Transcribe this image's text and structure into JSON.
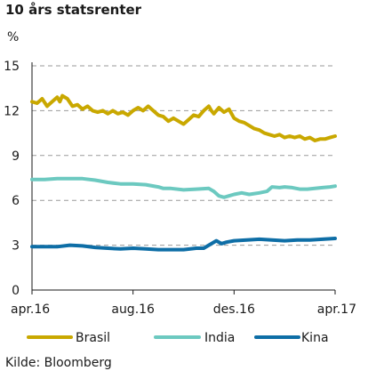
{
  "title": "10 års statsrenter",
  "unit_label": "%",
  "source": "Kilde: Bloomberg",
  "chart_data": {
    "type": "line",
    "title": "10 års statsrenter",
    "xlabel": "",
    "ylabel": "%",
    "ylim": [
      0,
      15
    ],
    "yticks": [
      0,
      3,
      6,
      9,
      12,
      15
    ],
    "xticks": [
      {
        "label": "apr.16",
        "x": 0
      },
      {
        "label": "aug.16",
        "x": 4
      },
      {
        "label": "des.16",
        "x": 8
      },
      {
        "label": "apr.17",
        "x": 12
      }
    ],
    "xlim": [
      0,
      12
    ],
    "grid": "horizontal dashed",
    "legend": "bottom",
    "series": [
      {
        "name": "Brasil",
        "color": "#c9a800",
        "points": [
          [
            0,
            12.6
          ],
          [
            0.2,
            12.5
          ],
          [
            0.4,
            12.8
          ],
          [
            0.6,
            12.3
          ],
          [
            0.8,
            12.6
          ],
          [
            1.0,
            12.9
          ],
          [
            1.1,
            12.6
          ],
          [
            1.2,
            13.0
          ],
          [
            1.4,
            12.8
          ],
          [
            1.6,
            12.3
          ],
          [
            1.8,
            12.4
          ],
          [
            2.0,
            12.1
          ],
          [
            2.2,
            12.3
          ],
          [
            2.4,
            12.0
          ],
          [
            2.6,
            11.9
          ],
          [
            2.8,
            12.0
          ],
          [
            3.0,
            11.8
          ],
          [
            3.2,
            12.0
          ],
          [
            3.4,
            11.8
          ],
          [
            3.6,
            11.9
          ],
          [
            3.8,
            11.7
          ],
          [
            4.0,
            12.0
          ],
          [
            4.2,
            12.2
          ],
          [
            4.4,
            12.0
          ],
          [
            4.6,
            12.3
          ],
          [
            4.8,
            12.0
          ],
          [
            5.0,
            11.7
          ],
          [
            5.2,
            11.6
          ],
          [
            5.4,
            11.3
          ],
          [
            5.6,
            11.5
          ],
          [
            5.8,
            11.3
          ],
          [
            6.0,
            11.1
          ],
          [
            6.2,
            11.4
          ],
          [
            6.4,
            11.7
          ],
          [
            6.6,
            11.6
          ],
          [
            6.8,
            12.0
          ],
          [
            7.0,
            12.3
          ],
          [
            7.1,
            12.0
          ],
          [
            7.2,
            11.8
          ],
          [
            7.4,
            12.2
          ],
          [
            7.6,
            11.9
          ],
          [
            7.8,
            12.1
          ],
          [
            8.0,
            11.5
          ],
          [
            8.2,
            11.3
          ],
          [
            8.4,
            11.2
          ],
          [
            8.6,
            11.0
          ],
          [
            8.8,
            10.8
          ],
          [
            9.0,
            10.7
          ],
          [
            9.2,
            10.5
          ],
          [
            9.4,
            10.4
          ],
          [
            9.6,
            10.3
          ],
          [
            9.8,
            10.4
          ],
          [
            10.0,
            10.2
          ],
          [
            10.2,
            10.3
          ],
          [
            10.4,
            10.2
          ],
          [
            10.6,
            10.3
          ],
          [
            10.8,
            10.1
          ],
          [
            11.0,
            10.2
          ],
          [
            11.2,
            10.0
          ],
          [
            11.4,
            10.1
          ],
          [
            11.6,
            10.1
          ],
          [
            11.8,
            10.2
          ],
          [
            12.0,
            10.3
          ]
        ]
      },
      {
        "name": "India",
        "color": "#6cc9c0",
        "points": [
          [
            0,
            7.4
          ],
          [
            0.5,
            7.4
          ],
          [
            1.0,
            7.45
          ],
          [
            1.5,
            7.45
          ],
          [
            2.0,
            7.45
          ],
          [
            2.5,
            7.35
          ],
          [
            3.0,
            7.2
          ],
          [
            3.5,
            7.1
          ],
          [
            4.0,
            7.1
          ],
          [
            4.5,
            7.05
          ],
          [
            5.0,
            6.9
          ],
          [
            5.2,
            6.8
          ],
          [
            5.5,
            6.8
          ],
          [
            6.0,
            6.7
          ],
          [
            6.5,
            6.75
          ],
          [
            7.0,
            6.8
          ],
          [
            7.2,
            6.6
          ],
          [
            7.4,
            6.3
          ],
          [
            7.6,
            6.2
          ],
          [
            7.8,
            6.3
          ],
          [
            8.0,
            6.4
          ],
          [
            8.3,
            6.5
          ],
          [
            8.6,
            6.4
          ],
          [
            9.0,
            6.5
          ],
          [
            9.3,
            6.6
          ],
          [
            9.5,
            6.9
          ],
          [
            9.8,
            6.85
          ],
          [
            10.0,
            6.9
          ],
          [
            10.3,
            6.85
          ],
          [
            10.6,
            6.75
          ],
          [
            10.9,
            6.75
          ],
          [
            11.2,
            6.8
          ],
          [
            11.5,
            6.85
          ],
          [
            11.8,
            6.9
          ],
          [
            12.0,
            6.95
          ]
        ]
      },
      {
        "name": "Kina",
        "color": "#0e6ea6",
        "points": [
          [
            0,
            2.9
          ],
          [
            0.5,
            2.9
          ],
          [
            1.0,
            2.9
          ],
          [
            1.5,
            3.0
          ],
          [
            2.0,
            2.95
          ],
          [
            2.5,
            2.85
          ],
          [
            3.0,
            2.8
          ],
          [
            3.5,
            2.75
          ],
          [
            4.0,
            2.8
          ],
          [
            4.5,
            2.75
          ],
          [
            5.0,
            2.7
          ],
          [
            5.5,
            2.7
          ],
          [
            6.0,
            2.7
          ],
          [
            6.5,
            2.8
          ],
          [
            6.8,
            2.8
          ],
          [
            7.0,
            3.0
          ],
          [
            7.3,
            3.3
          ],
          [
            7.5,
            3.1
          ],
          [
            7.7,
            3.2
          ],
          [
            8.0,
            3.3
          ],
          [
            8.5,
            3.35
          ],
          [
            9.0,
            3.4
          ],
          [
            9.5,
            3.35
          ],
          [
            10.0,
            3.3
          ],
          [
            10.5,
            3.35
          ],
          [
            11.0,
            3.35
          ],
          [
            11.5,
            3.4
          ],
          [
            12.0,
            3.45
          ]
        ]
      }
    ]
  }
}
